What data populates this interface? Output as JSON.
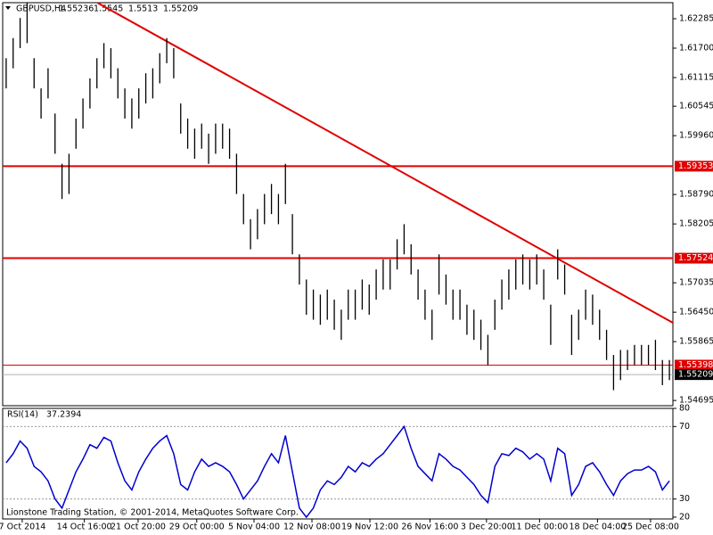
{
  "chart_data": {
    "type": "bar",
    "symbol": "GBPUSD,H4",
    "ohlc": [
      1.55236,
      1.5545,
      1.5513,
      1.55209
    ],
    "high": [
      1.615,
      1.619,
      1.623,
      1.626,
      1.615,
      1.609,
      1.613,
      1.604,
      1.594,
      1.596,
      1.603,
      1.607,
      1.611,
      1.615,
      1.618,
      1.617,
      1.613,
      1.609,
      1.607,
      1.609,
      1.612,
      1.613,
      1.616,
      1.619,
      1.617,
      1.606,
      1.603,
      1.601,
      1.602,
      1.6,
      1.602,
      1.602,
      1.601,
      1.596,
      1.588,
      1.583,
      1.585,
      1.588,
      1.59,
      1.588,
      1.594,
      1.584,
      1.576,
      1.571,
      1.569,
      1.568,
      1.569,
      1.567,
      1.565,
      1.569,
      1.569,
      1.571,
      1.57,
      1.573,
      1.575,
      1.575,
      1.579,
      1.582,
      1.578,
      1.573,
      1.569,
      1.565,
      1.576,
      1.572,
      1.569,
      1.569,
      1.566,
      1.565,
      1.563,
      1.56,
      1.567,
      1.571,
      1.573,
      1.575,
      1.576,
      1.575,
      1.576,
      1.573,
      1.566,
      1.577,
      1.574,
      1.564,
      1.565,
      1.569,
      1.568,
      1.565,
      1.561,
      1.556,
      1.557,
      1.557,
      1.558,
      1.558,
      1.558,
      1.559,
      1.555,
      1.555
    ],
    "low": [
      1.609,
      1.613,
      1.617,
      1.618,
      1.609,
      1.603,
      1.607,
      1.596,
      1.587,
      1.588,
      1.597,
      1.601,
      1.605,
      1.609,
      1.613,
      1.611,
      1.607,
      1.603,
      1.601,
      1.603,
      1.606,
      1.607,
      1.61,
      1.614,
      1.611,
      1.6,
      1.597,
      1.595,
      1.597,
      1.594,
      1.596,
      1.597,
      1.595,
      1.588,
      1.582,
      1.577,
      1.579,
      1.582,
      1.584,
      1.582,
      1.586,
      1.576,
      1.57,
      1.564,
      1.563,
      1.562,
      1.563,
      1.561,
      1.559,
      1.563,
      1.563,
      1.565,
      1.564,
      1.567,
      1.569,
      1.569,
      1.573,
      1.576,
      1.572,
      1.567,
      1.563,
      1.559,
      1.568,
      1.566,
      1.563,
      1.563,
      1.56,
      1.559,
      1.557,
      1.554,
      1.561,
      1.565,
      1.567,
      1.569,
      1.57,
      1.569,
      1.57,
      1.567,
      1.558,
      1.571,
      1.568,
      1.556,
      1.559,
      1.563,
      1.562,
      1.559,
      1.555,
      1.549,
      1.551,
      1.553,
      1.554,
      1.554,
      1.554,
      1.553,
      1.55,
      1.551
    ],
    "color": "#000000",
    "xlim": [
      0,
      96
    ],
    "ylim": [
      1.54591,
      1.62604
    ],
    "yticks": [
      1.62285,
      {
        "value": 1.617,
        "label": "1.61700"
      },
      1.61115,
      1.60545,
      {
        "value": 1.5996,
        "label": "1.59960"
      },
      {
        "value": 1.5879,
        "label": "1.58790"
      },
      1.58205,
      1.57035,
      {
        "value": 1.5645,
        "label": "1.56450"
      },
      1.55865,
      1.54695
    ],
    "xticks": [
      {
        "value": 2.8,
        "label": "7 Oct 2014"
      },
      {
        "value": 11.7,
        "label": "14 Oct 16:00"
      },
      {
        "value": 19.4,
        "label": "21 Oct 20:00"
      },
      {
        "value": 27.8,
        "label": "29 Oct 00:00"
      },
      {
        "value": 36,
        "label": "5 Nov 04:00"
      },
      {
        "value": 44.3,
        "label": "12 Nov 08:00"
      },
      {
        "value": 52.6,
        "label": "19 Nov 12:00"
      },
      {
        "value": 61.2,
        "label": "26 Nov 16:00"
      },
      {
        "value": 69.3,
        "label": "3 Dec 20:00"
      },
      {
        "value": 76.9,
        "label": "11 Dec 00:00"
      },
      {
        "value": 85.2,
        "label": "18 Dec 04:00"
      },
      {
        "value": 92.8,
        "label": "25 Dec 08:00"
      }
    ],
    "levels": [
      {
        "value": 1.59353,
        "color": "#e00000",
        "width": 2
      },
      {
        "value": 1.57524,
        "color": "#e00000",
        "width": 2
      },
      {
        "value": 1.55398,
        "color": "#e00000",
        "width": 1
      }
    ],
    "current_price": 1.55209,
    "trendline": {
      "x": [
        13.6,
        96
      ],
      "y": [
        1.626,
        1.5624
      ],
      "color": "#e00000"
    },
    "rsi": {
      "label": "RSI(14)",
      "current": 37.2394,
      "color": "#0000cc",
      "ylim": [
        19,
        80
      ],
      "yticks": [
        80,
        70,
        30,
        20
      ],
      "levels": [
        70,
        30
      ],
      "values": [
        50,
        55,
        62,
        58,
        48,
        45,
        40,
        30,
        25,
        35,
        45,
        52,
        60,
        58,
        64,
        62,
        50,
        40,
        35,
        45,
        52,
        58,
        62,
        65,
        55,
        38,
        35,
        45,
        52,
        48,
        50,
        48,
        45,
        38,
        30,
        35,
        40,
        48,
        55,
        50,
        65,
        45,
        25,
        20,
        25,
        35,
        40,
        38,
        42,
        48,
        45,
        50,
        48,
        52,
        55,
        60,
        65,
        70,
        58,
        48,
        44,
        40,
        55,
        52,
        48,
        46,
        42,
        38,
        32,
        28,
        48,
        55,
        54,
        58,
        56,
        52,
        55,
        52,
        40,
        58,
        55,
        32,
        38,
        48,
        50,
        45,
        38,
        32,
        40,
        44,
        46,
        46,
        48,
        45,
        35,
        40
      ]
    },
    "copyright": "Lionstone Trading Station, © 2001-2014, MetaQuotes Software Corp."
  }
}
